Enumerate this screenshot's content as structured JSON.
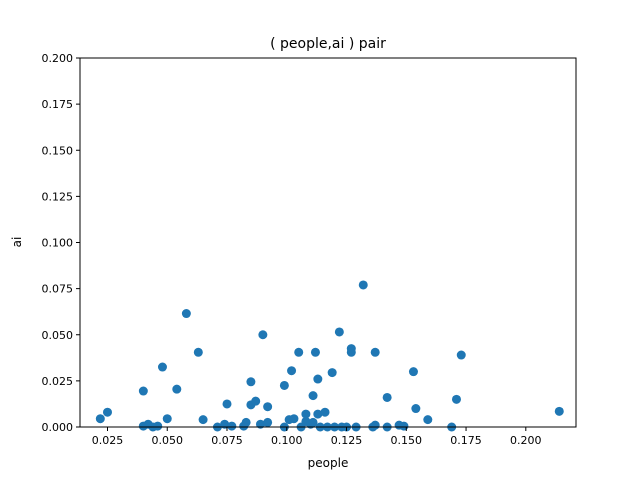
{
  "chart_data": {
    "type": "scatter",
    "title": "( people,ai ) pair",
    "xlabel": "people",
    "ylabel": "ai",
    "xlim": [
      0.0135,
      0.221
    ],
    "ylim": [
      0,
      0.2
    ],
    "xticks": [
      0.025,
      0.05,
      0.075,
      0.1,
      0.125,
      0.15,
      0.175,
      0.2
    ],
    "xtick_labels": [
      "0.025",
      "0.050",
      "0.075",
      "0.100",
      "0.125",
      "0.150",
      "0.175",
      "0.200"
    ],
    "yticks": [
      0.0,
      0.025,
      0.05,
      0.075,
      0.1,
      0.125,
      0.15,
      0.175,
      0.2
    ],
    "ytick_labels": [
      "0.000",
      "0.025",
      "0.050",
      "0.075",
      "0.100",
      "0.125",
      "0.150",
      "0.175",
      "0.200"
    ],
    "grid": false,
    "marker_color": "#1f77b4",
    "points": [
      [
        0.022,
        0.0045
      ],
      [
        0.025,
        0.008
      ],
      [
        0.04,
        0.0195
      ],
      [
        0.04,
        0.0005
      ],
      [
        0.042,
        0.0015
      ],
      [
        0.044,
        0.0
      ],
      [
        0.046,
        0.0005
      ],
      [
        0.048,
        0.0325
      ],
      [
        0.05,
        0.0045
      ],
      [
        0.054,
        0.0205
      ],
      [
        0.058,
        0.0615
      ],
      [
        0.063,
        0.0405
      ],
      [
        0.065,
        0.004
      ],
      [
        0.071,
        0.0
      ],
      [
        0.074,
        0.0015
      ],
      [
        0.075,
        0.0125
      ],
      [
        0.077,
        0.0005
      ],
      [
        0.082,
        0.0005
      ],
      [
        0.083,
        0.0025
      ],
      [
        0.085,
        0.012
      ],
      [
        0.085,
        0.0245
      ],
      [
        0.087,
        0.014
      ],
      [
        0.089,
        0.0015
      ],
      [
        0.09,
        0.05
      ],
      [
        0.092,
        0.011
      ],
      [
        0.092,
        0.0025
      ],
      [
        0.099,
        0.0225
      ],
      [
        0.099,
        0.0
      ],
      [
        0.101,
        0.004
      ],
      [
        0.102,
        0.0305
      ],
      [
        0.103,
        0.0045
      ],
      [
        0.105,
        0.0405
      ],
      [
        0.106,
        0.0
      ],
      [
        0.108,
        0.007
      ],
      [
        0.108,
        0.003
      ],
      [
        0.11,
        0.0015
      ],
      [
        0.111,
        0.017
      ],
      [
        0.111,
        0.0025
      ],
      [
        0.112,
        0.0405
      ],
      [
        0.113,
        0.007
      ],
      [
        0.113,
        0.026
      ],
      [
        0.114,
        0.0
      ],
      [
        0.116,
        0.008
      ],
      [
        0.117,
        0.0
      ],
      [
        0.119,
        0.0295
      ],
      [
        0.12,
        0.0
      ],
      [
        0.122,
        0.0515
      ],
      [
        0.123,
        0.0
      ],
      [
        0.125,
        0.0
      ],
      [
        0.127,
        0.0425
      ],
      [
        0.127,
        0.0405
      ],
      [
        0.129,
        0.0
      ],
      [
        0.132,
        0.077
      ],
      [
        0.136,
        0.0
      ],
      [
        0.137,
        0.0405
      ],
      [
        0.137,
        0.001
      ],
      [
        0.142,
        0.016
      ],
      [
        0.142,
        0.0
      ],
      [
        0.147,
        0.001
      ],
      [
        0.149,
        0.0005
      ],
      [
        0.153,
        0.03
      ],
      [
        0.154,
        0.01
      ],
      [
        0.159,
        0.004
      ],
      [
        0.169,
        0.0
      ],
      [
        0.171,
        0.015
      ],
      [
        0.173,
        0.039
      ],
      [
        0.214,
        0.0085
      ]
    ]
  }
}
